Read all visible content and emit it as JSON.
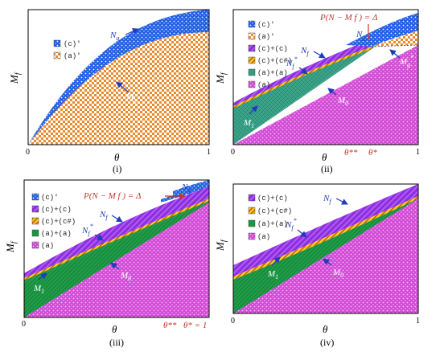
{
  "legend": {
    "c_prime": "(c)'",
    "a_prime": "(a)'",
    "c_plus_c": "(c)+(c)",
    "c_plus_chash": "(c)+(c#)",
    "a_plus_a": "(a)+(a)",
    "a": "(a)"
  },
  "axes": {
    "x_label": "θ",
    "y_label": "M",
    "y_label_sub": "f",
    "tick_zero": "0",
    "tick_one": "1"
  },
  "panels": {
    "i": {
      "caption": "(i)"
    },
    "ii": {
      "caption": "(ii)",
      "condition": "P(N − M f ) = Δ",
      "theta_dstar": "θ**",
      "theta_star": "θ*"
    },
    "iii": {
      "caption": "(iii)",
      "condition": "P(N − M f ) = Δ",
      "theta_dstar": "θ**",
      "theta_star_eq": "θ* = 1"
    },
    "iv": {
      "caption": "(iv)"
    }
  },
  "labels": {
    "N_g": "N",
    "N_g_sub": "g",
    "N_f": "N",
    "N_f_sub": "f",
    "N_f_star": "N",
    "N_f_star_sub": "f",
    "M_g_star": "M",
    "M_g_star_sub": "g",
    "M_0": "M",
    "M_0_sub": "0",
    "M_1": "M",
    "M_1_sub": "1",
    "star": "*"
  },
  "colors": {
    "blue": "#1f5fe0",
    "orange": "#e98a2c",
    "magenta": "#d24ad6",
    "green": "#22a04a",
    "teal": "#3aa489",
    "yellow": "#f2d21b",
    "annotation_blue": "#1f3db8",
    "annotation_red": "#c0392b"
  }
}
